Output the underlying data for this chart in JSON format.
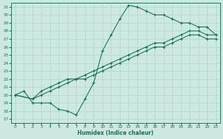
{
  "xlabel": "Humidex (Indice chaleur)",
  "bg_color": "#cce8e0",
  "grid_color": "#b0d8d0",
  "line_color": "#1a6e5c",
  "xlim": [
    -0.5,
    23.5
  ],
  "ylim": [
    16.5,
    31.5
  ],
  "xticks": [
    0,
    1,
    2,
    3,
    4,
    5,
    6,
    7,
    8,
    9,
    10,
    11,
    12,
    13,
    14,
    15,
    16,
    17,
    18,
    19,
    20,
    21,
    22,
    23
  ],
  "yticks": [
    17,
    18,
    19,
    20,
    21,
    22,
    23,
    24,
    25,
    26,
    27,
    28,
    29,
    30,
    31
  ],
  "line1_x": [
    0,
    1,
    2,
    3,
    4,
    5,
    6,
    7,
    8,
    9,
    10,
    11,
    12,
    13,
    14,
    15,
    16,
    17,
    18,
    19,
    20,
    21,
    22,
    23
  ],
  "line1_y": [
    20.0,
    20.5,
    19.0,
    19.0,
    19.0,
    18.2,
    18.0,
    17.5,
    19.5,
    21.5,
    25.5,
    27.5,
    29.5,
    31.2,
    31.0,
    30.5,
    30.0,
    30.0,
    29.5,
    29.0,
    29.0,
    28.5,
    28.5,
    27.5
  ],
  "line2_x": [
    0,
    2,
    3,
    4,
    5,
    6,
    7,
    8,
    9,
    10,
    11,
    12,
    13,
    14,
    15,
    16,
    17,
    18,
    19,
    20,
    21,
    22,
    23
  ],
  "line2_y": [
    20.0,
    19.5,
    20.0,
    20.5,
    21.0,
    21.5,
    22.0,
    22.5,
    23.0,
    23.5,
    24.0,
    24.5,
    25.0,
    25.5,
    26.0,
    26.5,
    26.5,
    27.0,
    27.5,
    28.0,
    28.0,
    27.5,
    27.5
  ],
  "line3_x": [
    0,
    2,
    3,
    4,
    5,
    6,
    7,
    8,
    9,
    10,
    11,
    12,
    13,
    14,
    15,
    16,
    17,
    18,
    19,
    20,
    21,
    22,
    23
  ],
  "line3_y": [
    20.0,
    19.5,
    20.5,
    21.0,
    21.5,
    22.0,
    22.0,
    22.0,
    22.5,
    23.0,
    23.5,
    24.0,
    24.5,
    25.0,
    25.5,
    26.0,
    26.0,
    26.5,
    27.0,
    27.5,
    27.5,
    27.0,
    27.0
  ]
}
